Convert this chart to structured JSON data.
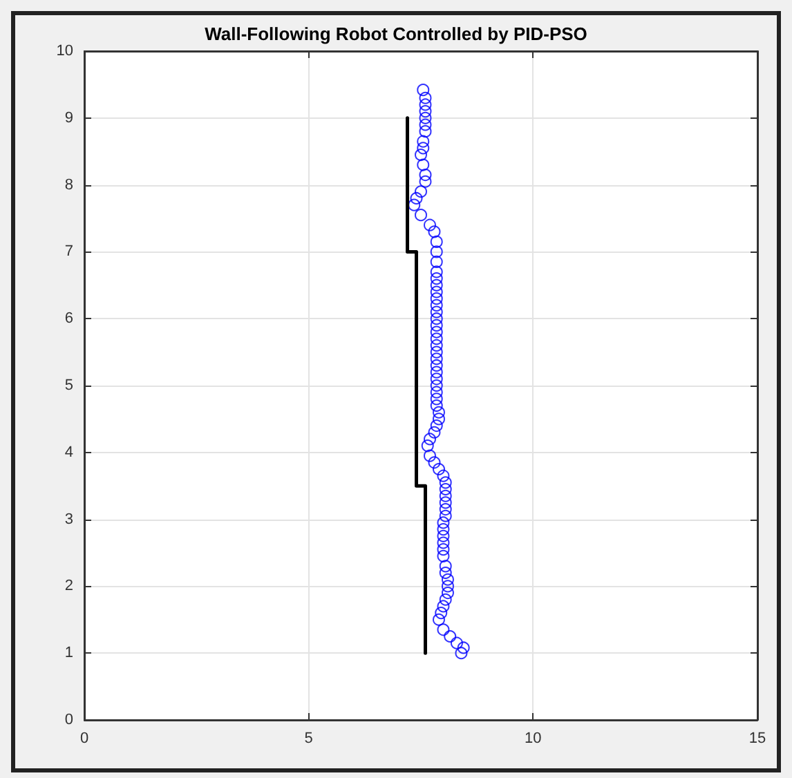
{
  "chart_data": {
    "type": "scatter",
    "title": "Wall-Following Robot Controlled by PID-PSO",
    "xlim": [
      0,
      15
    ],
    "xticks": [
      0,
      5,
      10,
      15
    ],
    "ylim": [
      0,
      10
    ],
    "yticks": [
      0,
      1,
      2,
      3,
      4,
      5,
      6,
      7,
      8,
      9,
      10
    ],
    "grid": true,
    "series": [
      {
        "type": "line",
        "color": "#000000",
        "line_style": "solid",
        "marker": "none",
        "x": [
          7.2,
          7.2,
          7.4,
          7.4,
          7.6,
          7.6
        ],
        "values": [
          9,
          7,
          7,
          3.5,
          3.5,
          1
        ]
      },
      {
        "color": "#0000ff",
        "marker": "circle",
        "x": [
          8.4,
          8.45,
          8.3,
          8.15,
          8.0,
          7.9,
          7.95,
          8.0,
          8.05,
          8.1,
          8.1,
          8.1,
          8.05,
          8.05,
          8.0,
          8.0,
          8.0,
          8.0,
          8.0,
          8.0,
          8.05,
          8.05,
          8.05,
          8.05,
          8.05,
          8.05,
          8.0,
          7.9,
          7.8,
          7.7,
          7.65,
          7.7,
          7.8,
          7.85,
          7.9,
          7.9,
          7.85,
          7.85,
          7.85,
          7.85,
          7.85,
          7.85,
          7.85,
          7.85,
          7.85,
          7.85,
          7.85,
          7.85,
          7.85,
          7.85,
          7.85,
          7.85,
          7.85,
          7.85,
          7.85,
          7.85,
          7.85,
          7.85,
          7.85,
          7.85,
          7.8,
          7.7,
          7.5,
          7.35,
          7.4,
          7.5,
          7.6,
          7.6,
          7.55,
          7.5,
          7.55,
          7.55,
          7.6,
          7.6,
          7.6,
          7.6,
          7.6,
          7.6,
          7.55
        ],
        "values": [
          1.0,
          1.08,
          1.15,
          1.25,
          1.35,
          1.5,
          1.6,
          1.7,
          1.8,
          1.9,
          2.0,
          2.1,
          2.2,
          2.3,
          2.45,
          2.55,
          2.65,
          2.75,
          2.85,
          2.95,
          3.05,
          3.15,
          3.25,
          3.35,
          3.45,
          3.55,
          3.65,
          3.75,
          3.85,
          3.95,
          4.1,
          4.2,
          4.3,
          4.4,
          4.5,
          4.6,
          4.7,
          4.8,
          4.9,
          5.0,
          5.1,
          5.2,
          5.3,
          5.4,
          5.5,
          5.6,
          5.7,
          5.8,
          5.9,
          6.0,
          6.1,
          6.2,
          6.3,
          6.4,
          6.5,
          6.6,
          6.7,
          6.85,
          7.0,
          7.15,
          7.3,
          7.4,
          7.55,
          7.7,
          7.8,
          7.9,
          8.05,
          8.15,
          8.3,
          8.45,
          8.55,
          8.65,
          8.8,
          8.9,
          9.0,
          9.1,
          9.2,
          9.3,
          9.42
        ]
      }
    ]
  }
}
